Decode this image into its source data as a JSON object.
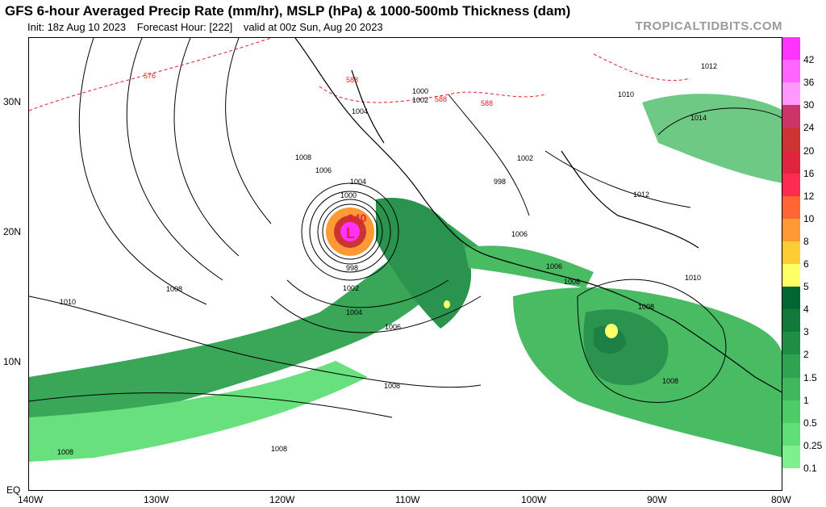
{
  "header": {
    "title": "GFS 6-hour Averaged Precip Rate (mm/hr), MSLP (hPa) & 1000-500mb Thickness (dam)",
    "init": "Init: 18z Aug 10 2023",
    "forecast_hour": "Forecast Hour: [222]",
    "valid": "valid at 00z Sun, Aug 20 2023",
    "brand": "TROPICALTIDBITS.COM"
  },
  "axes": {
    "lon_labels": [
      "140W",
      "130W",
      "120W",
      "110W",
      "100W",
      "90W",
      "80W"
    ],
    "lat_labels": [
      "30N",
      "20N",
      "10N",
      "EQ"
    ]
  },
  "colorbar": {
    "labels": [
      "42",
      "36",
      "30",
      "24",
      "20",
      "16",
      "12",
      "10",
      "8",
      "6",
      "5",
      "4",
      "3",
      "2",
      "1.5",
      "1",
      "0.5",
      "0.25",
      "0.1"
    ],
    "colors": [
      "#ff33ff",
      "#ff66ff",
      "#ff99ff",
      "#cc3366",
      "#cc3333",
      "#e0243c",
      "#ff2a50",
      "#ff6633",
      "#ff9933",
      "#ffcc33",
      "#ffff66",
      "#006633",
      "#117a3a",
      "#1f8e45",
      "#2fa34f",
      "#3fb85b",
      "#4ccc66",
      "#5fdf77",
      "#7ff08e"
    ]
  },
  "map": {
    "low_center_label": "L",
    "low_pressure": "940",
    "pressure_labels": [
      "1004",
      "1006",
      "1008",
      "1008",
      "1010",
      "1000",
      "998",
      "1002",
      "1004",
      "1006",
      "1008",
      "1008",
      "1008",
      "1012",
      "1010",
      "1012",
      "1014",
      "1004",
      "1002",
      "998",
      "1000",
      "1002",
      "1006",
      "1008",
      "1010",
      "1008",
      "1008",
      "1006"
    ],
    "thickness_labels": [
      "576",
      "588",
      "588",
      "588"
    ]
  }
}
